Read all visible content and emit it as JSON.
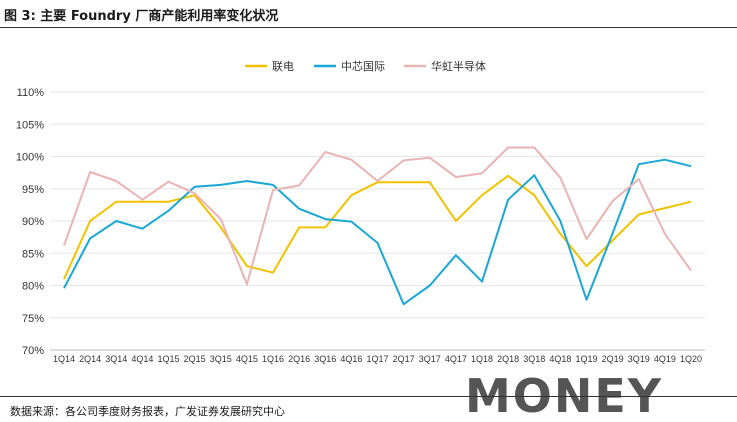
{
  "header": {
    "title": "图 3: 主要 Foundry 厂商产能利用率变化状况"
  },
  "footer": {
    "source": "数据来源：各公司季度财务报表，广发证券发展研究中心"
  },
  "watermark": {
    "text": "MONEY"
  },
  "chart_data": {
    "type": "line",
    "categories": [
      "1Q14",
      "2Q14",
      "3Q14",
      "4Q14",
      "1Q15",
      "2Q15",
      "3Q15",
      "4Q15",
      "1Q16",
      "2Q16",
      "3Q16",
      "4Q16",
      "1Q17",
      "2Q17",
      "3Q17",
      "4Q17",
      "1Q18",
      "2Q18",
      "3Q18",
      "4Q18",
      "1Q19",
      "2Q19",
      "3Q19",
      "4Q19",
      "1Q20"
    ],
    "ylim": [
      70,
      110
    ],
    "yticks": [
      "70%",
      "75%",
      "80%",
      "85%",
      "90%",
      "95%",
      "100%",
      "105%",
      "110%"
    ],
    "legend_position": "top-center",
    "series": [
      {
        "name": "联电",
        "color": "#f2c200",
        "values": [
          81,
          90,
          93,
          93,
          93,
          94,
          89,
          83,
          82,
          89,
          89,
          94,
          96,
          96,
          96,
          90,
          94,
          97,
          94,
          88,
          83,
          87,
          91,
          92,
          93
        ]
      },
      {
        "name": "中芯国际",
        "color": "#1aa7d6",
        "values": [
          79.6,
          87.3,
          90,
          88.8,
          91.6,
          95.3,
          95.6,
          96.2,
          95.6,
          91.9,
          90.3,
          89.9,
          86.6,
          77.1,
          80,
          84.7,
          80.6,
          93.3,
          97.1,
          90,
          77.8,
          88.1,
          98.8,
          99.5,
          98.5
        ]
      },
      {
        "name": "华虹半导体",
        "color": "#e8b4b4",
        "values": [
          86.2,
          97.6,
          96.2,
          93.3,
          96.1,
          94.3,
          90.3,
          80.2,
          94.8,
          95.5,
          100.7,
          99.5,
          96.2,
          99.4,
          99.8,
          96.8,
          97.4,
          101.4,
          101.4,
          96.7,
          87.2,
          93.1,
          96.5,
          88,
          82.3
        ]
      }
    ]
  }
}
